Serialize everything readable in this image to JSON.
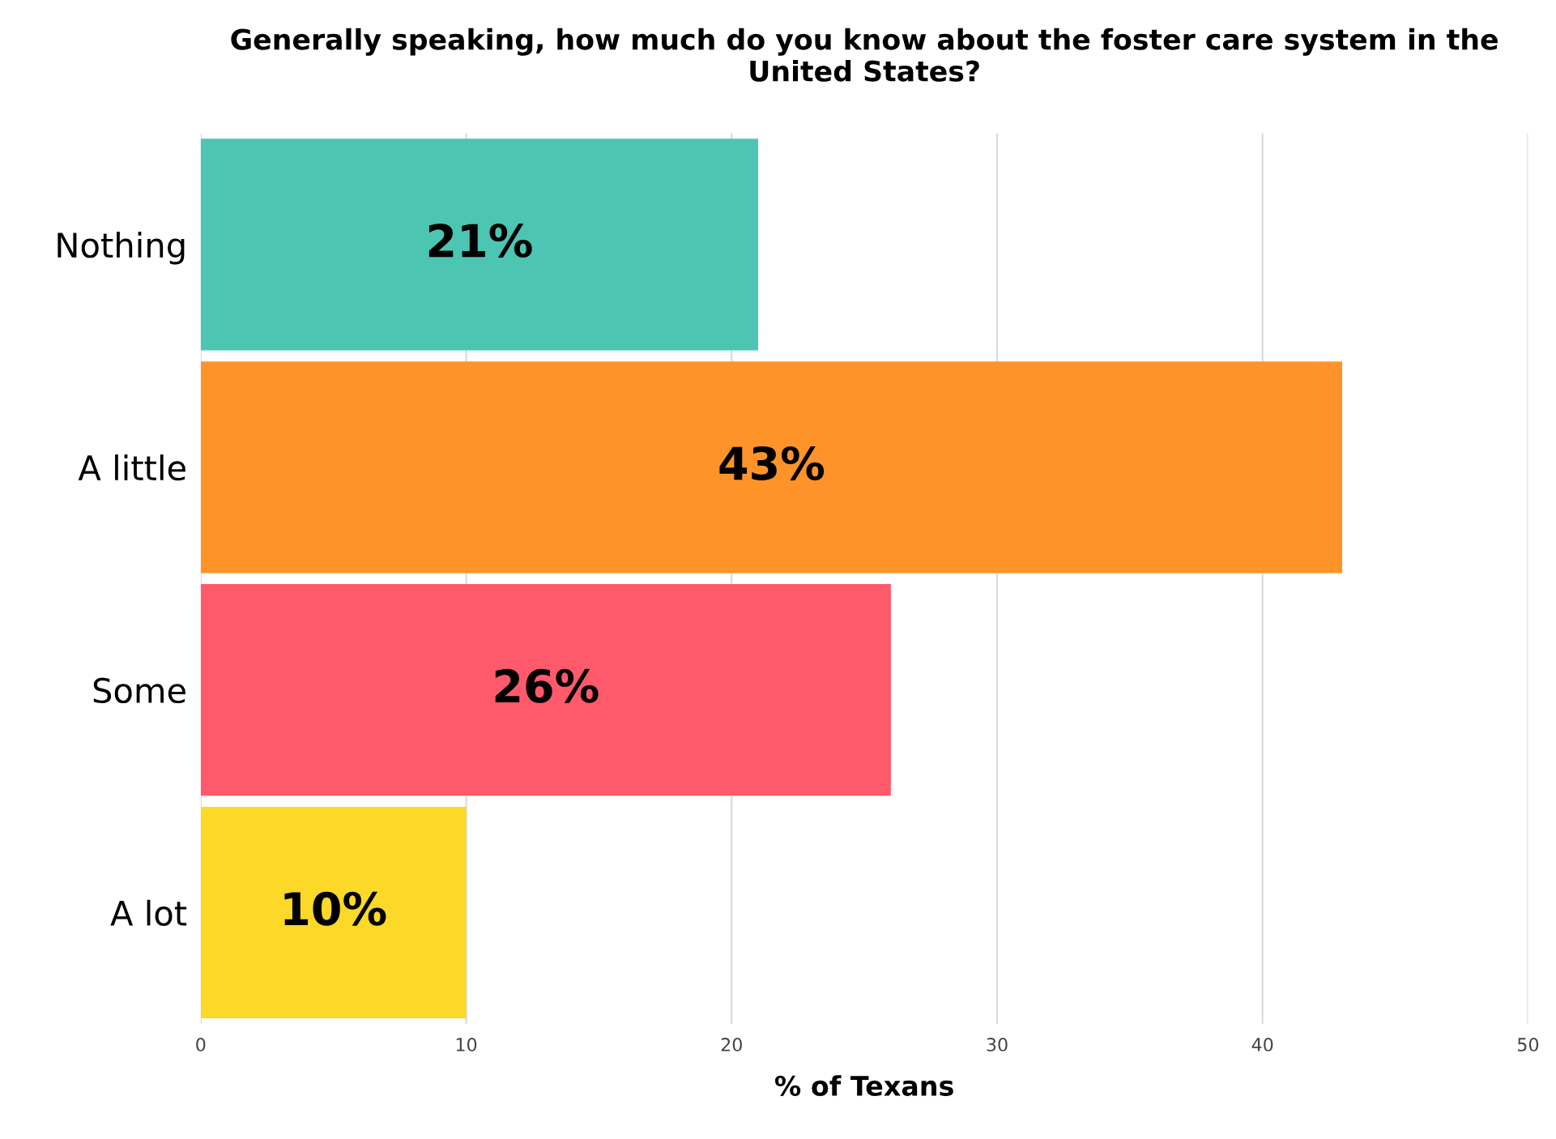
{
  "chart_data": {
    "type": "bar",
    "orientation": "horizontal",
    "title": "Generally speaking, how much do you know about the foster care system in the United States?",
    "xlabel": "% of Texans",
    "categories": [
      "Nothing",
      "A little",
      "Some",
      "A lot"
    ],
    "values": [
      21,
      43,
      26,
      10
    ],
    "colors": [
      "#4cc5b3",
      "#fe9429",
      "#fe5a6b",
      "#fcd828"
    ],
    "value_labels": [
      "21%",
      "43%",
      "26%",
      "10%"
    ],
    "xlim": [
      0,
      50
    ],
    "xticks": [
      0,
      10,
      20,
      30,
      40,
      50
    ],
    "grid": "x",
    "legend": false
  }
}
